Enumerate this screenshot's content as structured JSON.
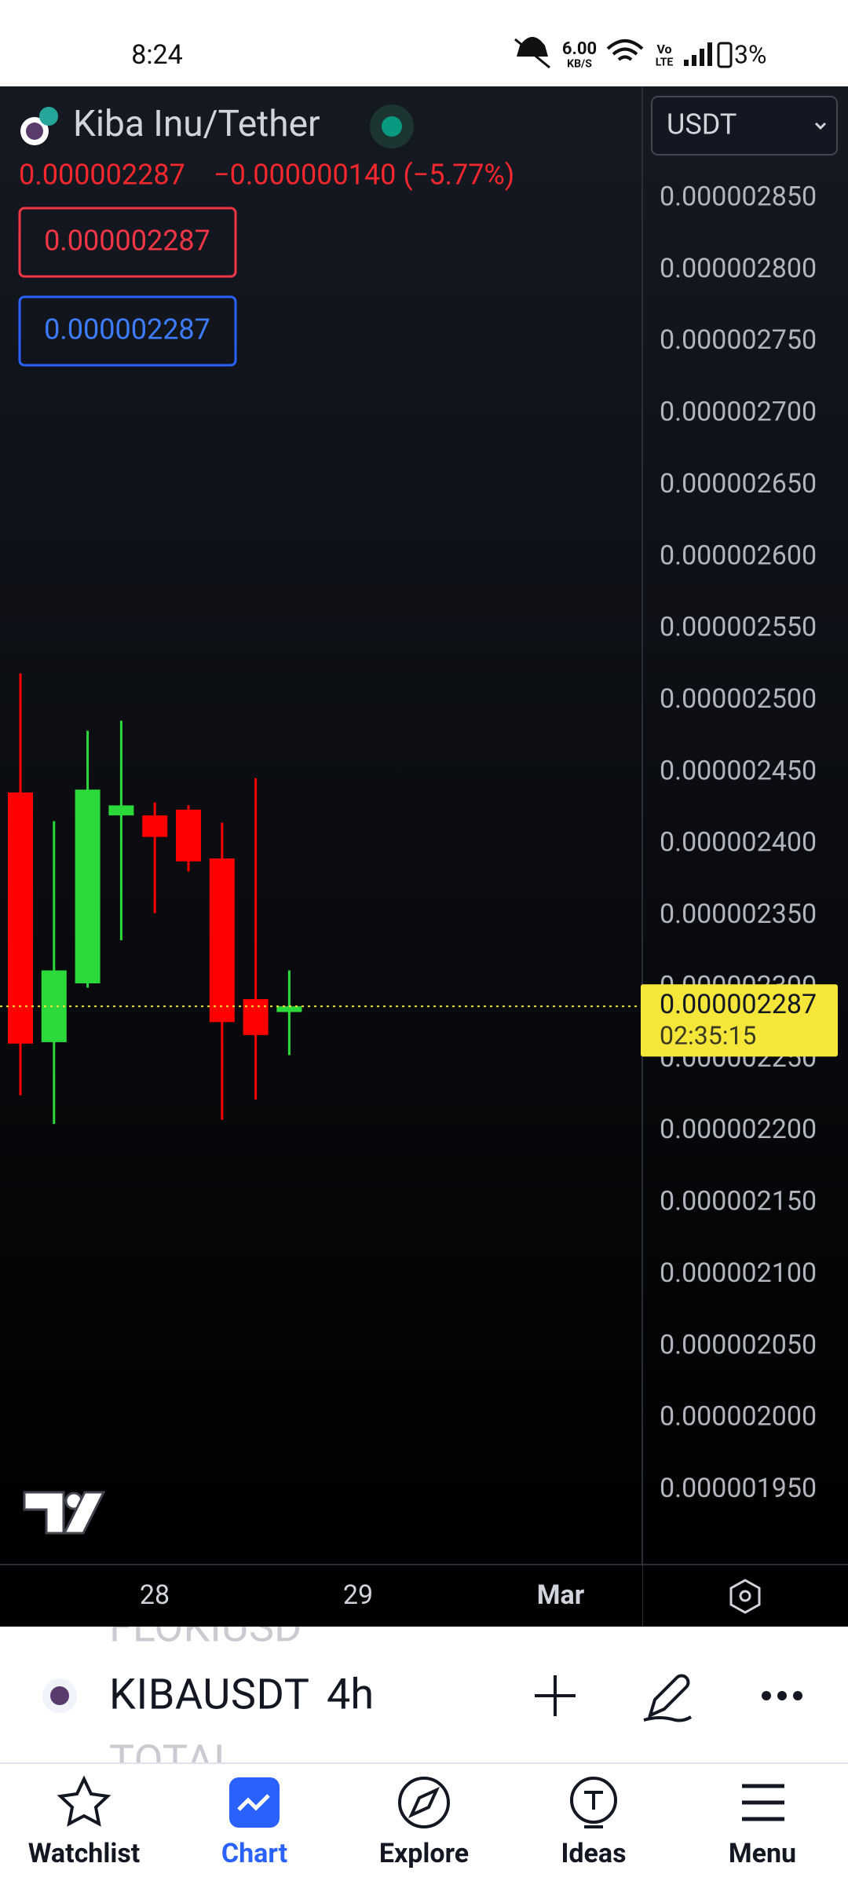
{
  "status_bar": {
    "time": "8:24",
    "net_speed": "6.00",
    "net_unit": "KB/S",
    "battery": "3%"
  },
  "header": {
    "symbol_name": "Kiba Inu/Tether",
    "price": "0.000002287",
    "change": "−0.000000140 (−5.77%)",
    "sell": "0.000002287",
    "buy": "0.000002287",
    "currency": "USDT"
  },
  "chart_data": {
    "type": "candlestick",
    "ylim": [
      1.898e-06,
      2.928e-06
    ],
    "yticks": [
      {
        "value": 2.85e-06,
        "label": "0.000002850"
      },
      {
        "value": 2.8e-06,
        "label": "0.000002800"
      },
      {
        "value": 2.75e-06,
        "label": "0.000002750"
      },
      {
        "value": 2.7e-06,
        "label": "0.000002700"
      },
      {
        "value": 2.65e-06,
        "label": "0.000002650"
      },
      {
        "value": 2.6e-06,
        "label": "0.000002600"
      },
      {
        "value": 2.55e-06,
        "label": "0.000002550"
      },
      {
        "value": 2.5e-06,
        "label": "0.000002500"
      },
      {
        "value": 2.45e-06,
        "label": "0.000002450"
      },
      {
        "value": 2.4e-06,
        "label": "0.000002400"
      },
      {
        "value": 2.35e-06,
        "label": "0.000002350"
      },
      {
        "value": 2.3e-06,
        "label": "0.000002300"
      },
      {
        "value": 2.25e-06,
        "label": "0.000002250"
      },
      {
        "value": 2.2e-06,
        "label": "0.000002200"
      },
      {
        "value": 2.15e-06,
        "label": "0.000002150"
      },
      {
        "value": 2.1e-06,
        "label": "0.000002100"
      },
      {
        "value": 2.05e-06,
        "label": "0.000002050"
      },
      {
        "value": 2e-06,
        "label": "0.000002000"
      },
      {
        "value": 1.95e-06,
        "label": "0.000001950"
      }
    ],
    "candles": [
      {
        "open": 2.436e-06,
        "high": 2.519e-06,
        "low": 2.225e-06,
        "close": 2.261e-06
      },
      {
        "open": 2.262e-06,
        "high": 2.416e-06,
        "low": 2.205e-06,
        "close": 2.312e-06
      },
      {
        "open": 2.303e-06,
        "high": 2.479e-06,
        "low": 2.3e-06,
        "close": 2.438e-06
      },
      {
        "open": 2.42e-06,
        "high": 2.486e-06,
        "low": 2.333e-06,
        "close": 2.427e-06
      },
      {
        "open": 2.42e-06,
        "high": 2.429e-06,
        "low": 2.352e-06,
        "close": 2.405e-06
      },
      {
        "open": 2.424e-06,
        "high": 2.427e-06,
        "low": 2.381e-06,
        "close": 2.388e-06
      },
      {
        "open": 2.39e-06,
        "high": 2.415e-06,
        "low": 2.208e-06,
        "close": 2.276e-06
      },
      {
        "open": 2.292e-06,
        "high": 2.446e-06,
        "low": 2.222e-06,
        "close": 2.267e-06
      },
      {
        "open": 2.283e-06,
        "high": 2.312e-06,
        "low": 2.253e-06,
        "close": 2.287e-06
      }
    ],
    "up_color": "#2bd93b",
    "down_color": "#ff0000",
    "last_price": 2.287e-06,
    "last_price_color": "#f5e639",
    "countdown": "02:35:15",
    "xticks": [
      "28",
      "29",
      "Mar"
    ]
  },
  "toolbar": {
    "prev_symbol": "FLOKIUSD",
    "symbol": "KIBAUSDT",
    "interval": "4h",
    "next_symbol": "TOTAL"
  },
  "nav": [
    "Watchlist",
    "Chart",
    "Explore",
    "Ideas",
    "Menu"
  ]
}
